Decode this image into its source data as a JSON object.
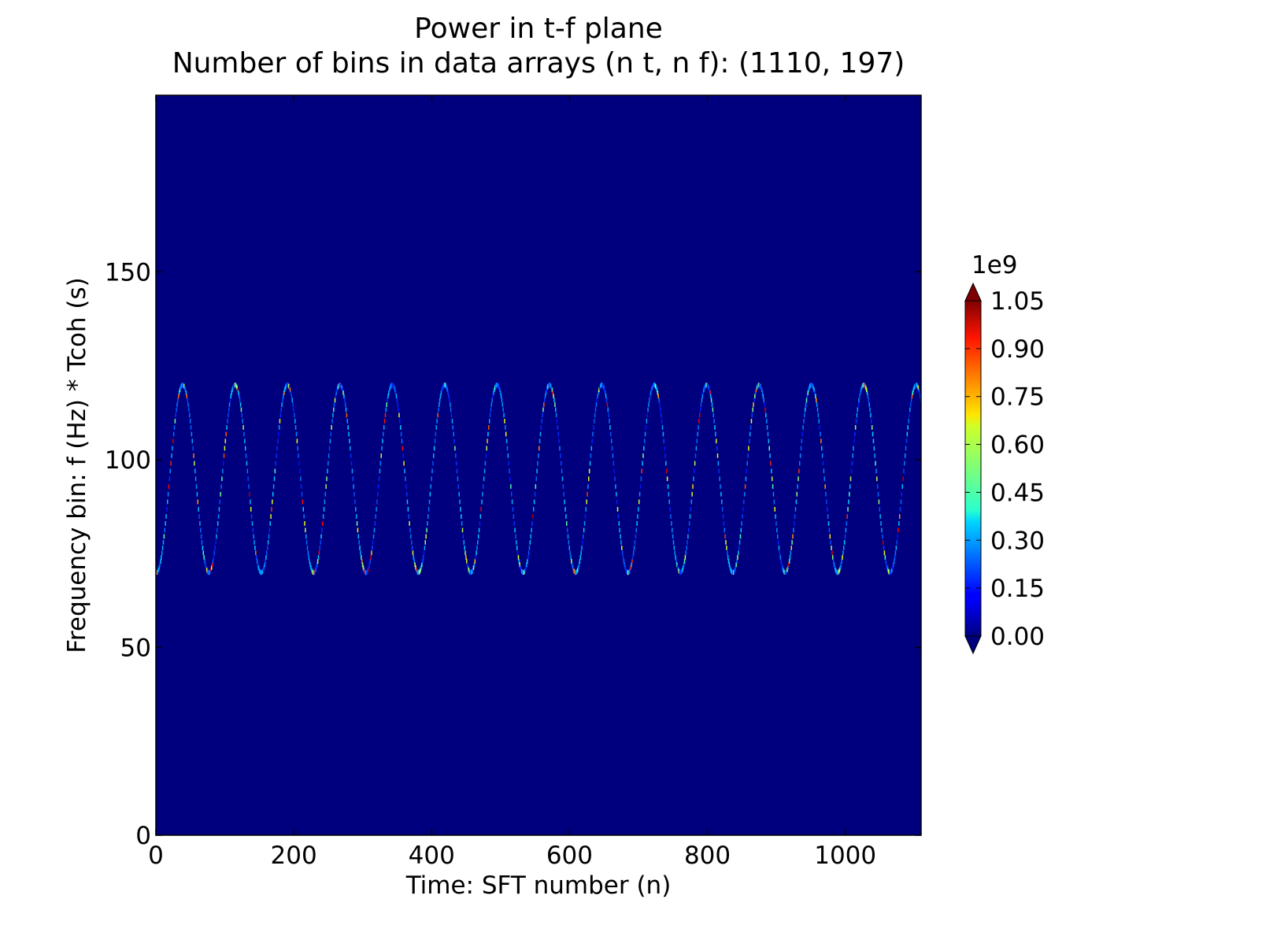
{
  "chart_data": {
    "type": "heatmap",
    "title": "Power in t-f plane",
    "subtitle": "Number of bins in data arrays (n t, n f): (1110, 197)",
    "xlabel": "Time: SFT number (n)",
    "ylabel": "Frequency bin: f (Hz) * Tcoh (s)",
    "xlim": [
      0,
      1110
    ],
    "ylim": [
      0,
      197
    ],
    "x_ticks": [
      "0",
      "200",
      "400",
      "600",
      "800",
      "1000"
    ],
    "x_tick_values": [
      0,
      200,
      400,
      600,
      800,
      1000
    ],
    "y_ticks": [
      "0",
      "50",
      "100",
      "150"
    ],
    "y_tick_values": [
      0,
      50,
      100,
      150
    ],
    "background_value": 0,
    "colormap": "jet",
    "colorbar": {
      "multiplier": "1e9",
      "min": 0,
      "max": 1.05,
      "ticks": [
        "0.00",
        "0.15",
        "0.30",
        "0.45",
        "0.60",
        "0.75",
        "0.90",
        "1.05"
      ],
      "tick_values": [
        0,
        0.15,
        0.3,
        0.45,
        0.6,
        0.75,
        0.9,
        1.05
      ],
      "extend": "both"
    },
    "signal_track": {
      "shape": "sinusoid",
      "center": 95,
      "amplitude": 25,
      "period": 76,
      "phase_start": 0,
      "approx_peak_x": [
        38,
        114,
        190,
        266,
        342,
        418,
        494,
        570,
        646,
        722,
        798,
        874,
        950,
        1026,
        1102
      ],
      "approx_trough_x": [
        76,
        152,
        228,
        304,
        380,
        456,
        532,
        608,
        684,
        760,
        836,
        912,
        988,
        1064
      ],
      "typical_value": 0.3,
      "max_value": 1.05
    }
  }
}
